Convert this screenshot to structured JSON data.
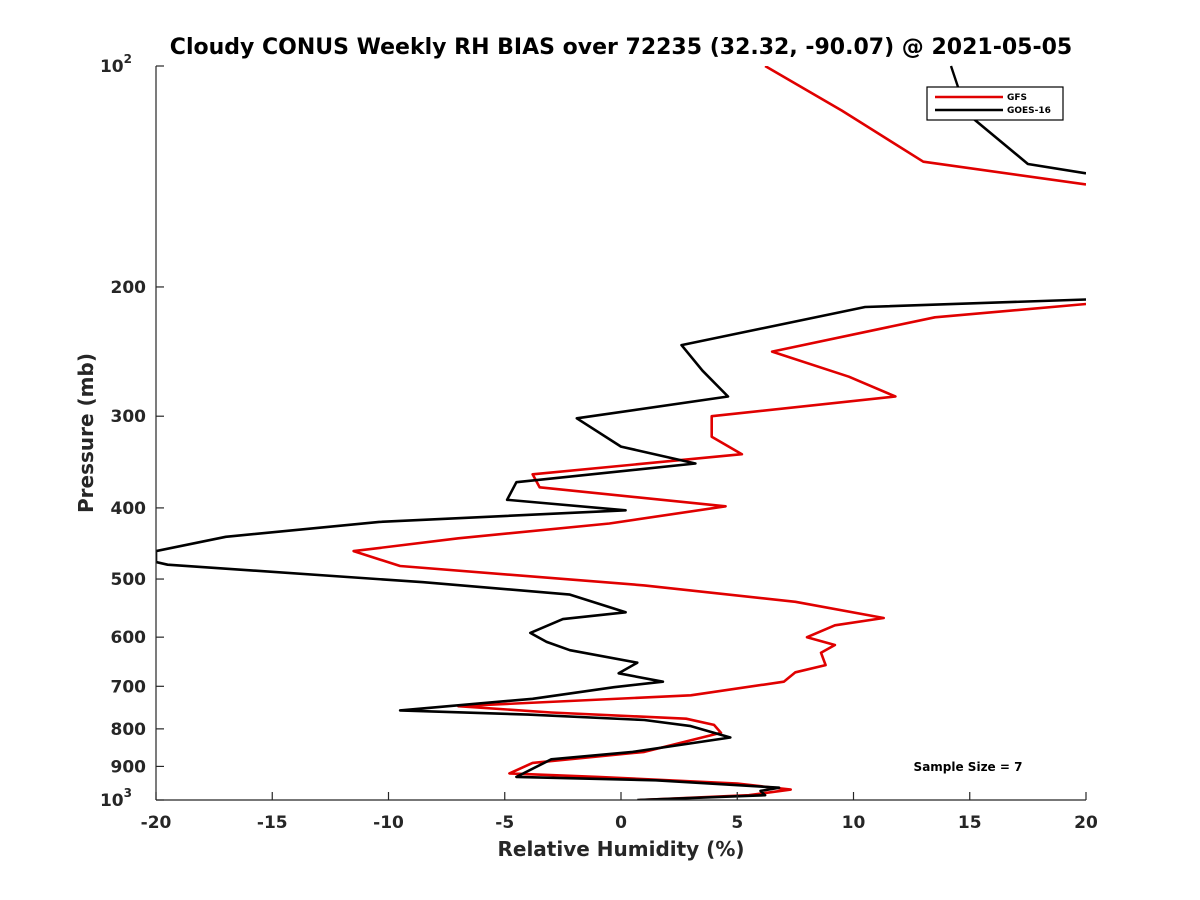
{
  "chart_data": {
    "type": "line",
    "title": "Cloudy CONUS Weekly RH BIAS over 72235 (32.32, -90.07) @ 2021-05-05",
    "xlabel": "Relative Humidity (%)",
    "ylabel": "Pressure (mb)",
    "xlim": [
      -20,
      20
    ],
    "ylim": [
      1000,
      100
    ],
    "yscale": "log",
    "x_ticks": [
      "-20",
      "-15",
      "-10",
      "-5",
      "0",
      "5",
      "10",
      "15",
      "20"
    ],
    "y_ticks": [
      {
        "value": 100,
        "label": "10",
        "sup": "2"
      },
      {
        "value": 200,
        "label": "200",
        "sup": ""
      },
      {
        "value": 300,
        "label": "300",
        "sup": ""
      },
      {
        "value": 400,
        "label": "400",
        "sup": ""
      },
      {
        "value": 500,
        "label": "500",
        "sup": ""
      },
      {
        "value": 600,
        "label": "600",
        "sup": ""
      },
      {
        "value": 700,
        "label": "700",
        "sup": ""
      },
      {
        "value": 800,
        "label": "800",
        "sup": ""
      },
      {
        "value": 900,
        "label": "900",
        "sup": ""
      },
      {
        "value": 1000,
        "label": "10",
        "sup": "3"
      }
    ],
    "legend": {
      "position": "top-right"
    },
    "annotation": "Sample Size = 7",
    "series": [
      {
        "name": "GFS",
        "color": "#e00000",
        "points": [
          [
            6.2,
            100
          ],
          [
            9.5,
            115
          ],
          [
            13.0,
            135
          ],
          [
            20.0,
            145
          ],
          [
            20.0,
            211
          ],
          [
            13.5,
            220
          ],
          [
            6.5,
            245
          ],
          [
            9.8,
            265
          ],
          [
            11.8,
            282
          ],
          [
            3.9,
            300
          ],
          [
            3.9,
            320
          ],
          [
            5.2,
            338
          ],
          [
            -3.8,
            360
          ],
          [
            -3.5,
            375
          ],
          [
            4.5,
            398
          ],
          [
            -0.5,
            420
          ],
          [
            -7.0,
            440
          ],
          [
            -11.5,
            458
          ],
          [
            -9.5,
            480
          ],
          [
            1.0,
            510
          ],
          [
            7.5,
            537
          ],
          [
            11.3,
            565
          ],
          [
            9.2,
            578
          ],
          [
            8.0,
            600
          ],
          [
            9.2,
            615
          ],
          [
            8.6,
            630
          ],
          [
            8.8,
            655
          ],
          [
            7.5,
            670
          ],
          [
            7.0,
            690
          ],
          [
            3.0,
            720
          ],
          [
            -7.0,
            745
          ],
          [
            -3.0,
            760
          ],
          [
            2.8,
            775
          ],
          [
            4.0,
            790
          ],
          [
            4.3,
            810
          ],
          [
            1.0,
            860
          ],
          [
            -3.8,
            890
          ],
          [
            -4.8,
            920
          ],
          [
            -1.0,
            930
          ],
          [
            5.0,
            950
          ],
          [
            7.3,
            968
          ],
          [
            5.5,
            985
          ],
          [
            0.8,
            1000
          ]
        ]
      },
      {
        "name": "GOES-16",
        "color": "#000000",
        "points": [
          [
            14.0,
            110
          ],
          [
            17.5,
            136
          ],
          [
            20.0,
            140
          ],
          [
            20.0,
            208
          ],
          [
            10.5,
            213
          ],
          [
            2.6,
            240
          ],
          [
            3.5,
            260
          ],
          [
            4.6,
            282
          ],
          [
            -1.9,
            302
          ],
          [
            0.0,
            330
          ],
          [
            3.2,
            348
          ],
          [
            -4.5,
            369
          ],
          [
            -4.9,
            390
          ],
          [
            0.2,
            403
          ],
          [
            -10.4,
            418
          ],
          [
            -17.0,
            438
          ],
          [
            -20.0,
            458
          ],
          [
            -20.0,
            474
          ],
          [
            -19.5,
            478
          ],
          [
            -8.5,
            505
          ],
          [
            -2.2,
            525
          ],
          [
            0.2,
            555
          ],
          [
            -2.5,
            567
          ],
          [
            -3.9,
            592
          ],
          [
            -3.2,
            609
          ],
          [
            -2.2,
            625
          ],
          [
            0.7,
            650
          ],
          [
            -0.1,
            672
          ],
          [
            1.8,
            690
          ],
          [
            -0.3,
            702
          ],
          [
            -3.8,
            728
          ],
          [
            -9.5,
            755
          ],
          [
            -4.0,
            765
          ],
          [
            1.0,
            778
          ],
          [
            3.0,
            793
          ],
          [
            4.7,
            822
          ],
          [
            0.5,
            860
          ],
          [
            -3.0,
            880
          ],
          [
            -4.5,
            930
          ],
          [
            1.5,
            940
          ],
          [
            6.8,
            962
          ],
          [
            6.0,
            972
          ],
          [
            6.2,
            985
          ],
          [
            0.7,
            1000
          ]
        ]
      }
    ]
  }
}
